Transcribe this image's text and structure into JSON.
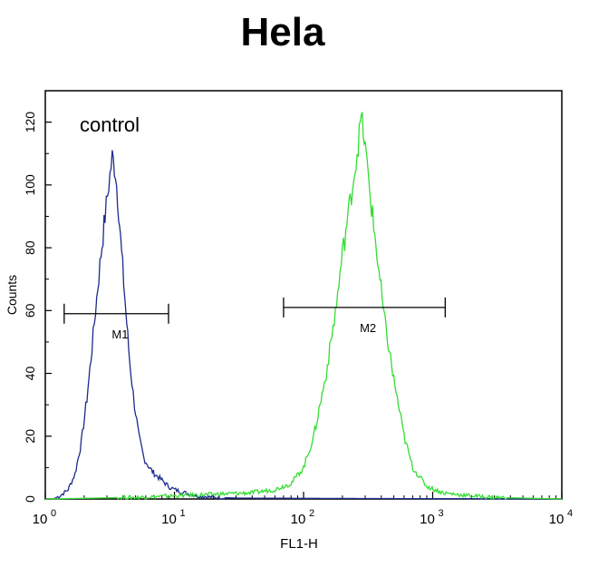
{
  "chart_data": {
    "type": "line",
    "title": "Hela",
    "xlabel": "FL1-H",
    "ylabel": "Counts",
    "x_scale": "log",
    "xlim": [
      1,
      10000
    ],
    "ylim": [
      0,
      130
    ],
    "y_ticks": [
      0,
      20,
      40,
      60,
      80,
      100,
      120
    ],
    "x_ticks": [
      {
        "base": "10",
        "exp": "0"
      },
      {
        "base": "10",
        "exp": "1"
      },
      {
        "base": "10",
        "exp": "2"
      },
      {
        "base": "10",
        "exp": "3"
      },
      {
        "base": "10",
        "exp": "4"
      }
    ],
    "annotation": "control",
    "markers": [
      {
        "label": "M1",
        "x_start": 1.4,
        "x_end": 9,
        "y": 59
      },
      {
        "label": "M2",
        "x_start": 70,
        "x_end": 1250,
        "y": 61
      }
    ],
    "series": [
      {
        "color": "#1c2a8c",
        "points": [
          [
            1.15,
            0
          ],
          [
            1.3,
            1
          ],
          [
            1.5,
            3
          ],
          [
            1.7,
            8
          ],
          [
            1.9,
            18
          ],
          [
            2.1,
            32
          ],
          [
            2.3,
            48
          ],
          [
            2.5,
            64
          ],
          [
            2.7,
            78
          ],
          [
            2.9,
            90
          ],
          [
            3.1,
            100
          ],
          [
            3.3,
            109
          ],
          [
            3.5,
            104
          ],
          [
            3.7,
            92
          ],
          [
            3.9,
            78
          ],
          [
            4.2,
            60
          ],
          [
            4.5,
            44
          ],
          [
            4.9,
            30
          ],
          [
            5.3,
            20
          ],
          [
            5.8,
            13
          ],
          [
            6.4,
            10
          ],
          [
            7,
            8
          ],
          [
            8,
            6
          ],
          [
            9,
            4
          ],
          [
            10,
            3
          ],
          [
            12,
            2
          ],
          [
            15,
            1
          ],
          [
            20,
            0.5
          ],
          [
            30,
            0.3
          ],
          [
            100,
            0.2
          ],
          [
            10000,
            0
          ]
        ]
      },
      {
        "color": "#33dd33",
        "points": [
          [
            1,
            0
          ],
          [
            5,
            0.5
          ],
          [
            10,
            1
          ],
          [
            20,
            1.5
          ],
          [
            40,
            2
          ],
          [
            60,
            3
          ],
          [
            80,
            5
          ],
          [
            100,
            10
          ],
          [
            120,
            20
          ],
          [
            150,
            40
          ],
          [
            180,
            62
          ],
          [
            200,
            78
          ],
          [
            230,
            95
          ],
          [
            260,
            110
          ],
          [
            280,
            122
          ],
          [
            300,
            112
          ],
          [
            330,
            96
          ],
          [
            370,
            78
          ],
          [
            420,
            58
          ],
          [
            500,
            38
          ],
          [
            600,
            20
          ],
          [
            700,
            10
          ],
          [
            900,
            4
          ],
          [
            1200,
            2
          ],
          [
            1500,
            1.5
          ],
          [
            2000,
            1
          ],
          [
            3000,
            0.5
          ],
          [
            10000,
            0
          ]
        ]
      }
    ]
  }
}
